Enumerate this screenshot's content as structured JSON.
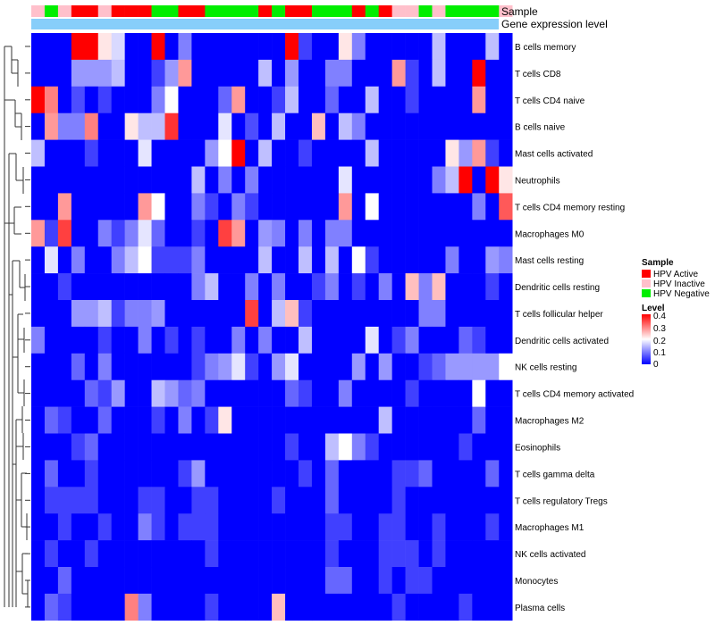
{
  "chart_data": {
    "type": "heatmap",
    "title": "",
    "annotation_tracks": [
      "Sample",
      "Gene expression level"
    ],
    "legend_sample": {
      "title": "Sample",
      "items": [
        {
          "label": "HPV Active",
          "color": "#ff0000"
        },
        {
          "label": "HPV Inactive",
          "color": "#ffc0cb"
        },
        {
          "label": "HPV Negative",
          "color": "#00ee00"
        }
      ]
    },
    "legend_level": {
      "title": "Level",
      "ticks": [
        "0.4",
        "0.3",
        "0.2",
        "0.1",
        "0"
      ],
      "colors": {
        "low": "#0000ff",
        "mid": "#ffffff",
        "high": "#ff0000"
      },
      "range": [
        0,
        0.4
      ]
    },
    "expression_color": "#87cefa",
    "n_columns": 36,
    "sample_groups": [
      "Inactive",
      "Negative",
      "Inactive",
      "Active",
      "Active",
      "Inactive",
      "Active",
      "Active",
      "Active",
      "Negative",
      "Negative",
      "Active",
      "Active",
      "Negative",
      "Negative",
      "Negative",
      "Negative",
      "Active",
      "Negative",
      "Active",
      "Active",
      "Negative",
      "Negative",
      "Negative",
      "Active",
      "Negative",
      "Active",
      "Inactive",
      "Inactive",
      "Negative",
      "Inactive",
      "Negative",
      "Negative",
      "Negative",
      "Negative",
      "Inactive"
    ],
    "row_labels": [
      "B cells memory",
      "T cells CD8",
      "T cells CD4 naive",
      "B cells naive",
      "Mast cells activated",
      "Neutrophils",
      "T cells CD4 memory resting",
      "Macrophages M0",
      "Mast cells resting",
      "Dendritic cells resting",
      "T cells follicular helper",
      "Dendritic cells activated",
      "NK cells resting",
      "T cells CD4 memory activated",
      "Macrophages M2",
      "Eosinophils",
      "T cells gamma delta",
      "T cells regulatory  Tregs",
      "Macrophages M1",
      "NK cells activated",
      "Monocytes",
      "Plasma cells"
    ],
    "values": [
      [
        0.0,
        0.0,
        0.0,
        0.4,
        0.4,
        0.22,
        0.17,
        0.0,
        0.0,
        0.4,
        0.0,
        0.1,
        0.0,
        0.0,
        0.0,
        0.0,
        0.0,
        0.0,
        0.0,
        0.4,
        0.05,
        0.0,
        0.0,
        0.22,
        0.1,
        0.0,
        0.0,
        0.0,
        0.0,
        0.0,
        0.15,
        0.0,
        0.0,
        0.0,
        0.15,
        0.0
      ],
      [
        0.0,
        0.0,
        0.0,
        0.12,
        0.12,
        0.12,
        0.15,
        0.0,
        0.0,
        0.05,
        0.12,
        0.28,
        0.0,
        0.0,
        0.0,
        0.0,
        0.0,
        0.15,
        0.0,
        0.12,
        0.0,
        0.0,
        0.1,
        0.1,
        0.0,
        0.0,
        0.0,
        0.28,
        0.05,
        0.0,
        0.15,
        0.0,
        0.0,
        0.4,
        0.0,
        0.0
      ],
      [
        0.4,
        0.3,
        0.0,
        0.06,
        0.0,
        0.05,
        0.0,
        0.0,
        0.0,
        0.1,
        0.2,
        0.0,
        0.0,
        0.0,
        0.08,
        0.28,
        0.0,
        0.0,
        0.05,
        0.15,
        0.0,
        0.0,
        0.08,
        0.0,
        0.0,
        0.15,
        0.0,
        0.0,
        0.05,
        0.0,
        0.0,
        0.0,
        0.0,
        0.28,
        0.0,
        0.0
      ],
      [
        0.0,
        0.28,
        0.1,
        0.1,
        0.3,
        0.0,
        0.0,
        0.22,
        0.15,
        0.15,
        0.36,
        0.0,
        0.0,
        0.0,
        0.18,
        0.0,
        0.06,
        0.0,
        0.15,
        0.0,
        0.0,
        0.25,
        0.0,
        0.15,
        0.1,
        0.0,
        0.0,
        0.0,
        0.0,
        0.0,
        0.0,
        0.0,
        0.0,
        0.0,
        0.0,
        0.0
      ],
      [
        0.15,
        0.0,
        0.0,
        0.0,
        0.05,
        0.0,
        0.0,
        0.0,
        0.18,
        0.0,
        0.0,
        0.0,
        0.0,
        0.12,
        0.2,
        0.4,
        0.0,
        0.15,
        0.0,
        0.0,
        0.05,
        0.0,
        0.0,
        0.0,
        0.0,
        0.15,
        0.0,
        0.0,
        0.0,
        0.0,
        0.0,
        0.22,
        0.12,
        0.28,
        0.05,
        0.0
      ],
      [
        0.0,
        0.0,
        0.0,
        0.0,
        0.0,
        0.0,
        0.0,
        0.0,
        0.0,
        0.0,
        0.0,
        0.0,
        0.15,
        0.0,
        0.1,
        0.0,
        0.1,
        0.0,
        0.0,
        0.0,
        0.0,
        0.0,
        0.0,
        0.18,
        0.0,
        0.0,
        0.0,
        0.0,
        0.0,
        0.0,
        0.1,
        0.15,
        0.4,
        0.0,
        0.4,
        0.22
      ],
      [
        0.0,
        0.0,
        0.28,
        0.0,
        0.0,
        0.0,
        0.0,
        0.0,
        0.28,
        0.2,
        0.0,
        0.0,
        0.1,
        0.05,
        0.0,
        0.1,
        0.05,
        0.0,
        0.0,
        0.0,
        0.0,
        0.0,
        0.0,
        0.28,
        0.0,
        0.2,
        0.0,
        0.0,
        0.0,
        0.0,
        0.0,
        0.0,
        0.0,
        0.1,
        0.0,
        0.33
      ],
      [
        0.28,
        0.05,
        0.35,
        0.0,
        0.0,
        0.1,
        0.05,
        0.1,
        0.18,
        0.08,
        0.0,
        0.0,
        0.05,
        0.0,
        0.35,
        0.28,
        0.0,
        0.12,
        0.1,
        0.0,
        0.1,
        0.0,
        0.1,
        0.1,
        0.0,
        0.0,
        0.0,
        0.0,
        0.0,
        0.0,
        0.0,
        0.0,
        0.0,
        0.0,
        0.0,
        0.0
      ],
      [
        0.0,
        0.18,
        0.0,
        0.1,
        0.0,
        0.0,
        0.1,
        0.15,
        0.2,
        0.05,
        0.05,
        0.05,
        0.1,
        0.0,
        0.0,
        0.0,
        0.0,
        0.15,
        0.0,
        0.0,
        0.15,
        0.0,
        0.15,
        0.0,
        0.2,
        0.05,
        0.0,
        0.0,
        0.0,
        0.0,
        0.0,
        0.1,
        0.0,
        0.0,
        0.12,
        0.1
      ],
      [
        0.0,
        0.0,
        0.05,
        0.0,
        0.0,
        0.0,
        0.0,
        0.0,
        0.0,
        0.0,
        0.0,
        0.0,
        0.1,
        0.15,
        0.0,
        0.0,
        0.1,
        0.0,
        0.1,
        0.0,
        0.0,
        0.05,
        0.1,
        0.0,
        0.05,
        0.0,
        0.1,
        0.0,
        0.25,
        0.1,
        0.25,
        0.0,
        0.0,
        0.0,
        0.05,
        0.0
      ],
      [
        0.0,
        0.0,
        0.0,
        0.12,
        0.12,
        0.15,
        0.05,
        0.1,
        0.1,
        0.12,
        0.0,
        0.0,
        0.0,
        0.0,
        0.0,
        0.0,
        0.35,
        0.0,
        0.15,
        0.25,
        0.05,
        0.0,
        0.0,
        0.0,
        0.0,
        0.0,
        0.0,
        0.0,
        0.0,
        0.1,
        0.1,
        0.0,
        0.0,
        0.0,
        0.0,
        0.0
      ],
      [
        0.1,
        0.0,
        0.0,
        0.0,
        0.0,
        0.05,
        0.0,
        0.0,
        0.1,
        0.0,
        0.05,
        0.0,
        0.05,
        0.0,
        0.0,
        0.1,
        0.0,
        0.1,
        0.0,
        0.0,
        0.15,
        0.0,
        0.0,
        0.0,
        0.0,
        0.18,
        0.0,
        0.05,
        0.1,
        0.0,
        0.0,
        0.0,
        0.08,
        0.05,
        0.0,
        0.0
      ],
      [
        0.0,
        0.0,
        0.0,
        0.08,
        0.0,
        0.1,
        0.0,
        0.0,
        0.0,
        0.0,
        0.0,
        0.0,
        0.05,
        0.1,
        0.12,
        0.18,
        0.05,
        0.0,
        0.12,
        0.18,
        0.0,
        0.0,
        0.0,
        0.0,
        0.12,
        0.0,
        0.12,
        0.0,
        0.0,
        0.05,
        0.08,
        0.12,
        0.12,
        0.12,
        0.12,
        0.2
      ],
      [
        0.0,
        0.0,
        0.0,
        0.0,
        0.08,
        0.05,
        0.12,
        0.0,
        0.0,
        0.15,
        0.12,
        0.08,
        0.1,
        0.0,
        0.0,
        0.0,
        0.0,
        0.0,
        0.0,
        0.08,
        0.05,
        0.0,
        0.0,
        0.1,
        0.0,
        0.0,
        0.0,
        0.0,
        0.05,
        0.0,
        0.0,
        0.0,
        0.0,
        0.2,
        0.0,
        0.0
      ],
      [
        0.0,
        0.08,
        0.05,
        0.0,
        0.0,
        0.08,
        0.0,
        0.0,
        0.0,
        0.05,
        0.0,
        0.1,
        0.0,
        0.05,
        0.22,
        0.0,
        0.0,
        0.0,
        0.0,
        0.0,
        0.0,
        0.0,
        0.0,
        0.0,
        0.0,
        0.0,
        0.15,
        0.0,
        0.0,
        0.0,
        0.0,
        0.0,
        0.0,
        0.08,
        0.0,
        0.0
      ],
      [
        0.0,
        0.0,
        0.0,
        0.05,
        0.08,
        0.0,
        0.0,
        0.0,
        0.0,
        0.0,
        0.0,
        0.0,
        0.0,
        0.0,
        0.0,
        0.0,
        0.0,
        0.0,
        0.0,
        0.05,
        0.0,
        0.0,
        0.15,
        0.2,
        0.1,
        0.05,
        0.0,
        0.0,
        0.0,
        0.0,
        0.0,
        0.0,
        0.05,
        0.0,
        0.0,
        0.0
      ],
      [
        0.0,
        0.08,
        0.0,
        0.0,
        0.05,
        0.0,
        0.0,
        0.0,
        0.0,
        0.0,
        0.0,
        0.05,
        0.12,
        0.0,
        0.0,
        0.0,
        0.0,
        0.0,
        0.0,
        0.0,
        0.05,
        0.0,
        0.08,
        0.0,
        0.0,
        0.0,
        0.0,
        0.05,
        0.05,
        0.08,
        0.0,
        0.0,
        0.0,
        0.0,
        0.08,
        0.0
      ],
      [
        0.0,
        0.05,
        0.05,
        0.05,
        0.05,
        0.0,
        0.0,
        0.0,
        0.05,
        0.05,
        0.0,
        0.0,
        0.05,
        0.05,
        0.0,
        0.0,
        0.0,
        0.0,
        0.05,
        0.0,
        0.0,
        0.0,
        0.08,
        0.0,
        0.0,
        0.0,
        0.0,
        0.05,
        0.0,
        0.0,
        0.0,
        0.0,
        0.0,
        0.0,
        0.0,
        0.0
      ],
      [
        0.0,
        0.0,
        0.05,
        0.0,
        0.0,
        0.05,
        0.0,
        0.0,
        0.1,
        0.05,
        0.0,
        0.05,
        0.05,
        0.05,
        0.0,
        0.0,
        0.0,
        0.0,
        0.0,
        0.0,
        0.0,
        0.0,
        0.05,
        0.05,
        0.0,
        0.0,
        0.05,
        0.05,
        0.0,
        0.0,
        0.05,
        0.0,
        0.0,
        0.0,
        0.05,
        0.0
      ],
      [
        0.0,
        0.05,
        0.0,
        0.0,
        0.05,
        0.0,
        0.0,
        0.0,
        0.0,
        0.0,
        0.0,
        0.0,
        0.0,
        0.05,
        0.0,
        0.0,
        0.0,
        0.0,
        0.0,
        0.0,
        0.0,
        0.0,
        0.05,
        0.0,
        0.0,
        0.0,
        0.05,
        0.05,
        0.05,
        0.0,
        0.05,
        0.0,
        0.0,
        0.0,
        0.0,
        0.0
      ],
      [
        0.0,
        0.0,
        0.08,
        0.0,
        0.0,
        0.0,
        0.0,
        0.0,
        0.0,
        0.0,
        0.0,
        0.0,
        0.0,
        0.0,
        0.0,
        0.0,
        0.0,
        0.0,
        0.0,
        0.0,
        0.0,
        0.0,
        0.08,
        0.08,
        0.0,
        0.0,
        0.05,
        0.0,
        0.05,
        0.05,
        0.0,
        0.0,
        0.0,
        0.0,
        0.0,
        0.0
      ],
      [
        0.0,
        0.08,
        0.05,
        0.0,
        0.0,
        0.0,
        0.0,
        0.3,
        0.1,
        0.0,
        0.0,
        0.0,
        0.0,
        0.05,
        0.0,
        0.0,
        0.0,
        0.0,
        0.25,
        0.0,
        0.0,
        0.0,
        0.0,
        0.0,
        0.0,
        0.0,
        0.0,
        0.05,
        0.0,
        0.0,
        0.0,
        0.0,
        0.05,
        0.0,
        0.0,
        0.0
      ]
    ]
  }
}
